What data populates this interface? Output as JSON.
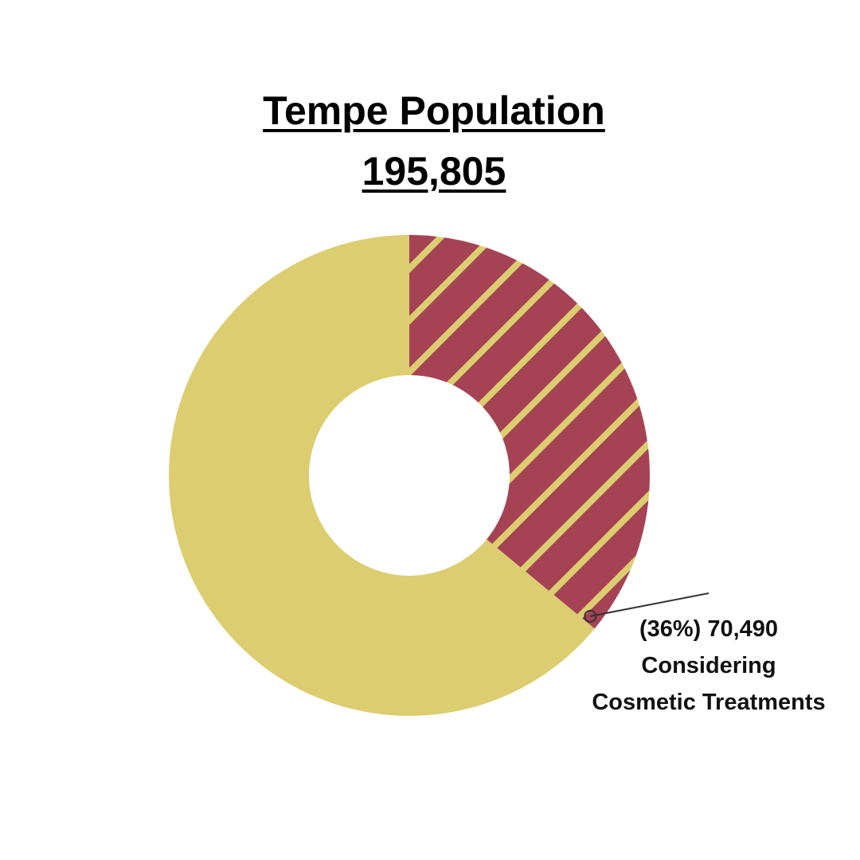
{
  "chart_data": {
    "type": "donut",
    "title": "Tempe Population",
    "subtitle": "195,805",
    "categories": [
      "Considering Cosmetic Treatments",
      null
    ],
    "values": [
      36,
      64
    ],
    "value_labels": [
      "(36%)",
      null
    ],
    "counts": [
      {
        "value": 70490,
        "label": "70,490"
      },
      null
    ],
    "colors": [
      "#a54354",
      "#dccd70"
    ],
    "hatch": [
      true,
      false
    ]
  }
}
